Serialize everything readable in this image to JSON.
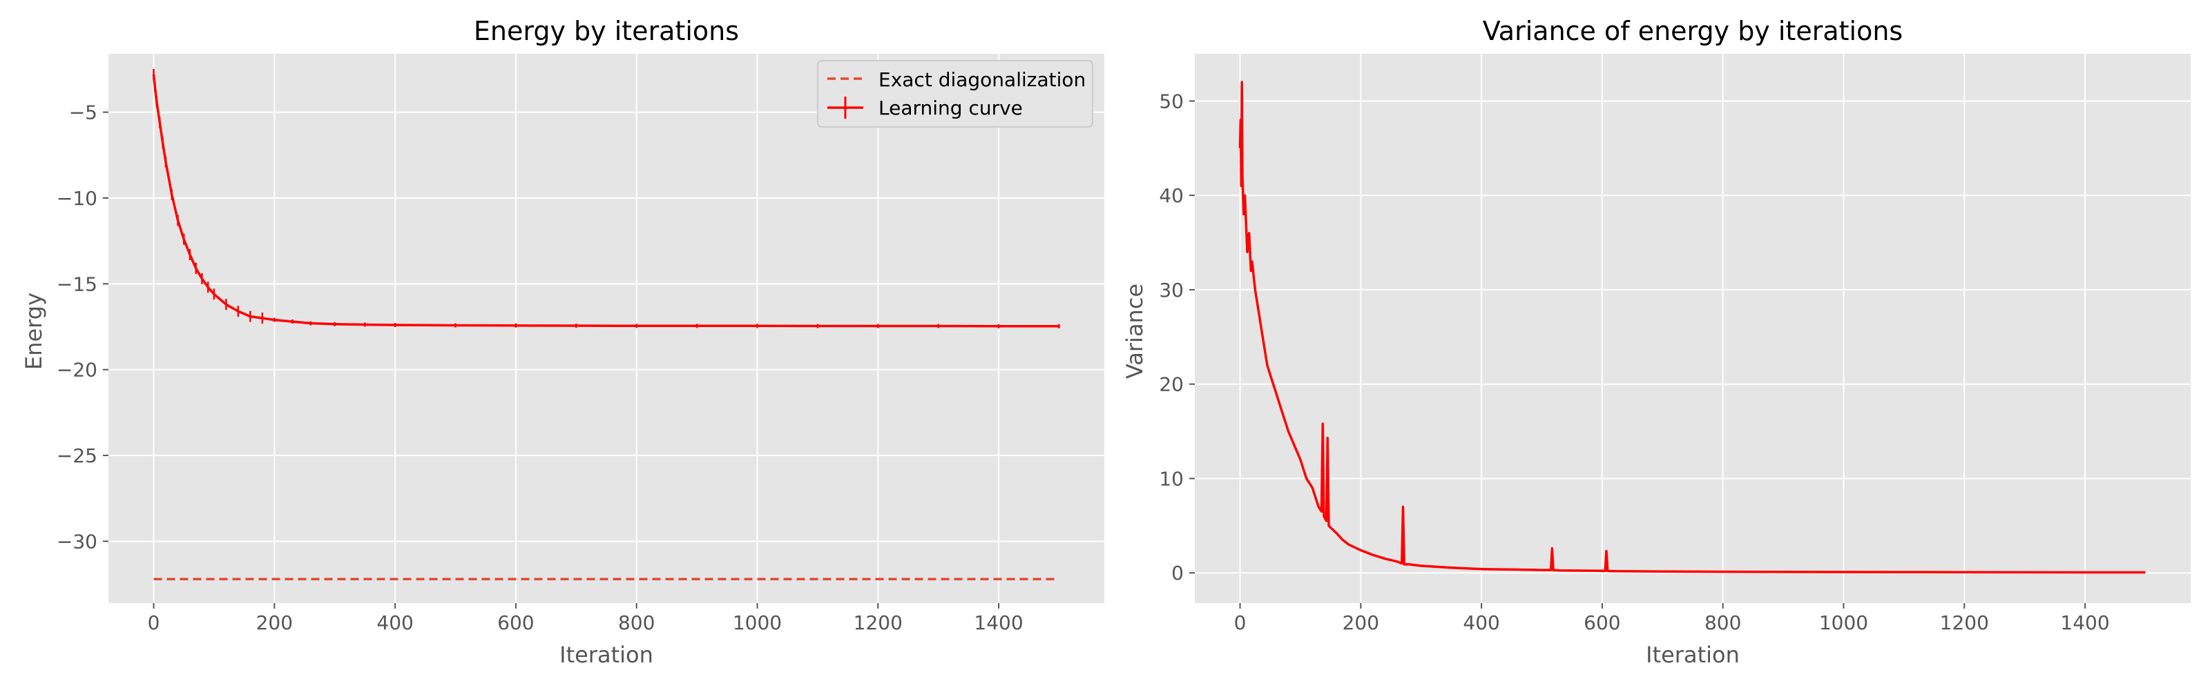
{
  "chart_data": [
    {
      "type": "line",
      "title": "Energy by iterations",
      "xlabel": "Iteration",
      "ylabel": "Energy",
      "xlim": [
        -75,
        1575
      ],
      "ylim": [
        -33.6,
        -1.6
      ],
      "xticks": [
        0,
        200,
        400,
        600,
        800,
        1000,
        1200,
        1400
      ],
      "xtick_labels": [
        "0",
        "200",
        "400",
        "600",
        "800",
        "1000",
        "1200",
        "1400"
      ],
      "yticks": [
        -30,
        -25,
        -20,
        -15,
        -10,
        -5
      ],
      "ytick_labels": [
        "−30",
        "−25",
        "−20",
        "−15",
        "−10",
        "−5"
      ],
      "grid": true,
      "legend_position": "top-right",
      "series": [
        {
          "name": "Exact diagonalization",
          "style": "dashed",
          "color": "#e24a33",
          "x": [
            0,
            1500
          ],
          "y": [
            -32.2,
            -32.2
          ]
        },
        {
          "name": "Learning curve",
          "style": "solid-errorbar",
          "color": "#ff0000",
          "x": [
            0,
            2,
            5,
            10,
            15,
            20,
            30,
            40,
            50,
            60,
            70,
            80,
            90,
            100,
            120,
            140,
            160,
            180,
            200,
            230,
            260,
            300,
            350,
            400,
            500,
            600,
            700,
            800,
            900,
            1000,
            1100,
            1200,
            1300,
            1400,
            1500
          ],
          "y": [
            -2.8,
            -3.5,
            -4.4,
            -5.6,
            -6.8,
            -7.9,
            -9.8,
            -11.3,
            -12.4,
            -13.3,
            -14.1,
            -14.7,
            -15.2,
            -15.6,
            -16.2,
            -16.6,
            -16.9,
            -17.0,
            -17.1,
            -17.2,
            -17.3,
            -17.35,
            -17.38,
            -17.4,
            -17.42,
            -17.43,
            -17.44,
            -17.45,
            -17.45,
            -17.45,
            -17.46,
            -17.46,
            -17.46,
            -17.47,
            -17.47
          ]
        }
      ]
    },
    {
      "type": "line",
      "title": "Variance of energy by iterations",
      "xlabel": "Iteration",
      "ylabel": "Variance",
      "xlim": [
        -75,
        1575
      ],
      "ylim": [
        -3.2,
        55
      ],
      "xticks": [
        0,
        200,
        400,
        600,
        800,
        1000,
        1200,
        1400
      ],
      "xtick_labels": [
        "0",
        "200",
        "400",
        "600",
        "800",
        "1000",
        "1200",
        "1400"
      ],
      "yticks": [
        0,
        10,
        20,
        30,
        40,
        50
      ],
      "ytick_labels": [
        "0",
        "10",
        "20",
        "30",
        "40",
        "50"
      ],
      "grid": true,
      "series": [
        {
          "style": "solid",
          "color": "#ff0000",
          "x": [
            0,
            1,
            2,
            3,
            4,
            5,
            6,
            8,
            10,
            12,
            15,
            18,
            20,
            25,
            30,
            35,
            40,
            45,
            50,
            55,
            60,
            70,
            80,
            90,
            100,
            110,
            120,
            130,
            135,
            137,
            139,
            143,
            145,
            147,
            150,
            160,
            170,
            180,
            200,
            220,
            240,
            260,
            268,
            270,
            272,
            280,
            300,
            350,
            400,
            450,
            500,
            515,
            517,
            519,
            530,
            600,
            605,
            607,
            609,
            620,
            700,
            800,
            900,
            1000,
            1100,
            1200,
            1300,
            1400,
            1500
          ],
          "y": [
            45,
            48,
            41,
            52,
            42,
            40,
            38,
            40,
            37,
            34,
            36,
            32,
            33,
            30,
            28,
            26,
            24,
            22,
            21,
            20,
            19,
            17,
            15,
            13.5,
            12,
            10,
            9,
            7,
            6.5,
            15.8,
            6,
            5.5,
            14.3,
            5,
            4.8,
            4.2,
            3.5,
            3.0,
            2.4,
            1.9,
            1.5,
            1.2,
            1.0,
            7.0,
            0.9,
            0.9,
            0.75,
            0.55,
            0.4,
            0.35,
            0.3,
            0.3,
            2.6,
            0.28,
            0.25,
            0.22,
            0.2,
            2.3,
            0.2,
            0.18,
            0.15,
            0.12,
            0.1,
            0.09,
            0.08,
            0.07,
            0.06,
            0.05,
            0.05
          ]
        }
      ]
    }
  ]
}
